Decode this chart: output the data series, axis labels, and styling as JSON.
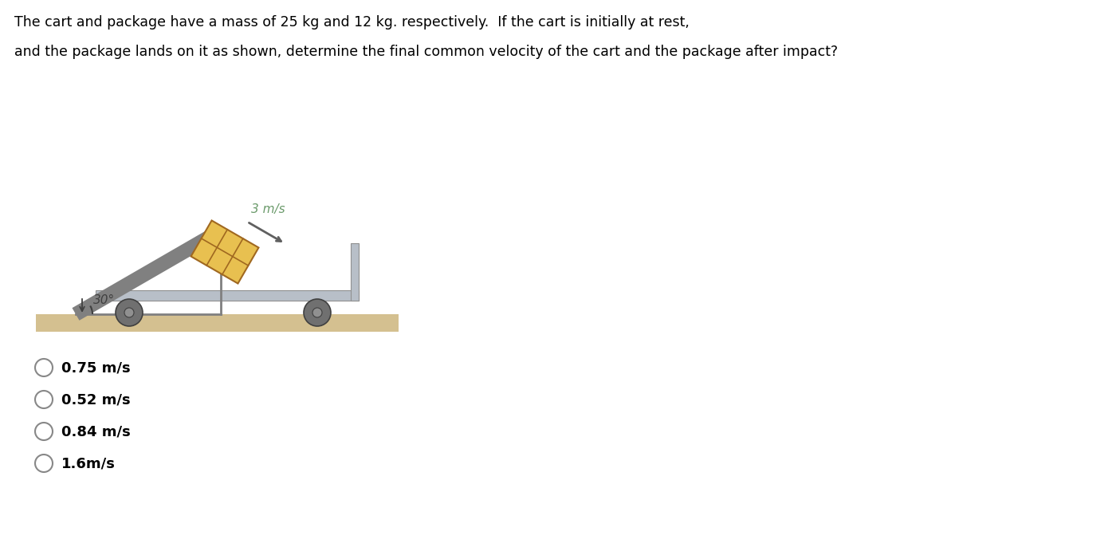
{
  "title_line1": "The cart and package have a mass of 25 kg and 12 kg. respectively.  If the cart is initially at rest,",
  "title_line2": "and the package lands on it as shown, determine the final common velocity of the cart and the package after impact?",
  "angle_label": "30°",
  "velocity_label": "3 m/s",
  "options": [
    "0.75 m/s",
    "0.52 m/s",
    "0.84 m/s",
    "1.6m/s"
  ],
  "bg_color": "#ffffff",
  "text_color": "#000000",
  "ramp_color": "#808080",
  "cart_platform_color": "#b8bfc8",
  "wheel_color": "#707070",
  "ground_color": "#d4c090",
  "package_color": "#e8c050",
  "package_line_color": "#a06820",
  "arrow_color": "#606060",
  "velocity_text_color": "#6a9a6a",
  "angle_text_color": "#404040"
}
